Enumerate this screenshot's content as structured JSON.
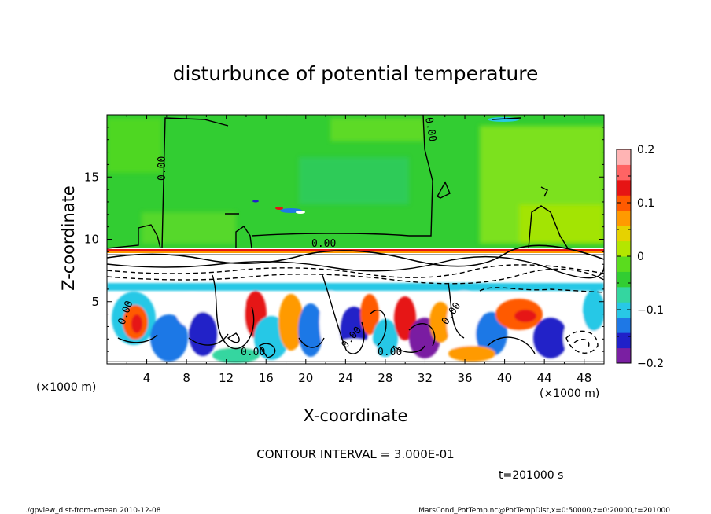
{
  "chart_data": {
    "type": "heatmap",
    "title": "disturbunce of potential temperature",
    "xlabel": "X-coordinate",
    "ylabel": "Z-coordinate",
    "x_unit_left": "(×1000 m)",
    "x_unit_right": "(×1000 m)",
    "xlim": [
      0,
      50
    ],
    "ylim": [
      0,
      20
    ],
    "xticks": [
      "4",
      "8",
      "12",
      "16",
      "20",
      "24",
      "28",
      "32",
      "36",
      "40",
      "44",
      "48"
    ],
    "yticks": [
      "5",
      "10",
      "15"
    ],
    "colorbar": {
      "range": [
        -0.2,
        0.2
      ],
      "tick_labels": [
        "0.2",
        "0.1",
        "0",
        "−0.1",
        "−0.2"
      ],
      "colors": [
        "#7a1fa2",
        "#2020c8",
        "#1e78e6",
        "#28c8e6",
        "#34d6a0",
        "#32cd32",
        "#5adc1e",
        "#b4e600",
        "#e6d200",
        "#ff9a00",
        "#ff5a00",
        "#e61414",
        "#ff6464",
        "#ffb4b4"
      ]
    },
    "contour_labels": [
      "0.00",
      "0.00",
      "0.00",
      "0.00",
      "0.00",
      "0.00",
      "0.00",
      "0.00"
    ],
    "contour_interval": "CONTOUR INTERVAL = 3.000E-01",
    "time": "t=201000 s"
  },
  "footer": {
    "left": "./gpview_dist-from-xmean  2010-12-08",
    "right": "MarsCond_PotTemp.nc@PotTempDist,x=0:50000,z=0:20000,t=201000"
  }
}
